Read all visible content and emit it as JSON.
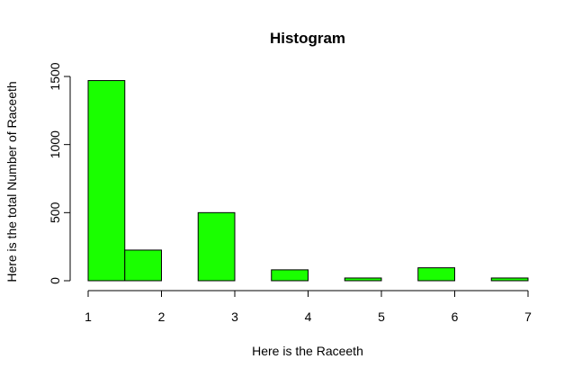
{
  "chart_data": {
    "type": "bar",
    "title": "Histogram",
    "xlabel": "Here is the Raceeth",
    "ylabel": "Here is the total Number of Raceeth",
    "bins": [
      {
        "x0": 1.0,
        "x1": 1.5,
        "count": 1470
      },
      {
        "x0": 1.5,
        "x1": 2.0,
        "count": 225
      },
      {
        "x0": 2.0,
        "x1": 2.5,
        "count": 0
      },
      {
        "x0": 2.5,
        "x1": 3.0,
        "count": 500
      },
      {
        "x0": 3.0,
        "x1": 3.5,
        "count": 0
      },
      {
        "x0": 3.5,
        "x1": 4.0,
        "count": 80
      },
      {
        "x0": 4.0,
        "x1": 4.5,
        "count": 0
      },
      {
        "x0": 4.5,
        "x1": 5.0,
        "count": 20
      },
      {
        "x0": 5.0,
        "x1": 5.5,
        "count": 0
      },
      {
        "x0": 5.5,
        "x1": 6.0,
        "count": 95
      },
      {
        "x0": 6.0,
        "x1": 6.5,
        "count": 0
      },
      {
        "x0": 6.5,
        "x1": 7.0,
        "count": 20
      }
    ],
    "xlim": [
      1,
      7
    ],
    "ylim": [
      0,
      1500
    ],
    "xticks": [
      1,
      2,
      3,
      4,
      5,
      6,
      7
    ],
    "yticks": [
      0,
      500,
      1000,
      1500
    ],
    "bar_color": "#1AFF00",
    "grid": false
  }
}
